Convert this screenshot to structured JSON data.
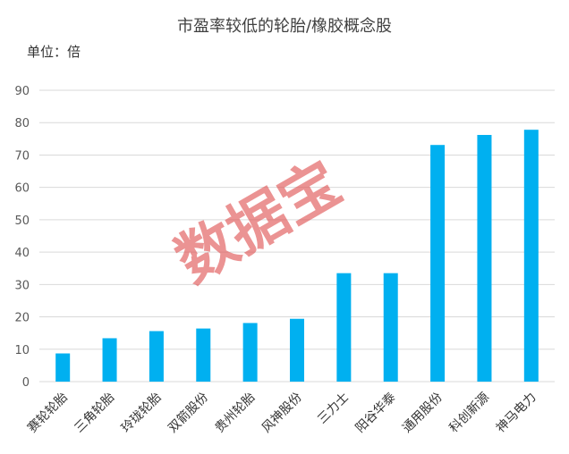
{
  "chart_data": {
    "type": "bar",
    "title": "市盈率较低的轮胎/橡胶概念股",
    "unit_label": "单位：倍",
    "watermark": "数据宝",
    "categories": [
      "赛轮轮胎",
      "三角轮胎",
      "玲珑轮胎",
      "双箭股份",
      "贵州轮胎",
      "风神股份",
      "三力士",
      "阳谷华泰",
      "通用股份",
      "科创新源",
      "神马电力"
    ],
    "values": [
      8.7,
      13.4,
      15.6,
      16.4,
      18.1,
      19.4,
      33.5,
      33.5,
      73.1,
      76.2,
      77.8
    ],
    "ylim": [
      0,
      90
    ],
    "yticks": [
      0,
      10,
      20,
      30,
      40,
      50,
      60,
      70,
      80,
      90
    ],
    "grid": true,
    "bar_color": "#00b0f0",
    "grid_color": "#d9d9d9",
    "watermark_color": "#e05252"
  }
}
